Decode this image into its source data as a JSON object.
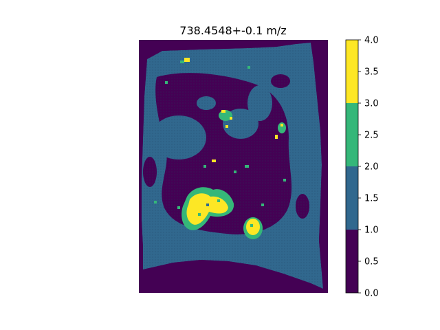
{
  "chart_data": {
    "type": "heatmap",
    "title": "738.4548+-0.1 m/z",
    "xlabel": "",
    "ylabel": "",
    "axes_visible": false,
    "colormap": "viridis (discrete, 4 levels)",
    "colorbar": {
      "range": [
        0.0,
        4.0
      ],
      "ticks": [
        0.0,
        0.5,
        1.0,
        1.5,
        2.0,
        2.5,
        3.0,
        3.5,
        4.0
      ],
      "tick_labels": [
        "0.0",
        "0.5",
        "1.0",
        "1.5",
        "2.0",
        "2.5",
        "3.0",
        "3.5",
        "4.0"
      ],
      "bins": [
        {
          "from": 0.0,
          "to": 1.0,
          "color": "#440154"
        },
        {
          "from": 1.0,
          "to": 2.0,
          "color": "#31688e"
        },
        {
          "from": 2.0,
          "to": 3.0,
          "color": "#35b779"
        },
        {
          "from": 3.0,
          "to": 4.0,
          "color": "#fde725"
        }
      ]
    },
    "regions": [
      {
        "name": "tissue-section",
        "level": 1
      },
      {
        "name": "low-intensity-interior",
        "level": 0
      },
      {
        "name": "hotspot-lower-left",
        "level": 3
      },
      {
        "name": "hotspot-lower-center",
        "level": 3
      },
      {
        "name": "hotspot-upper-center",
        "level": 2
      },
      {
        "name": "hotspot-right",
        "level": 2
      }
    ]
  }
}
